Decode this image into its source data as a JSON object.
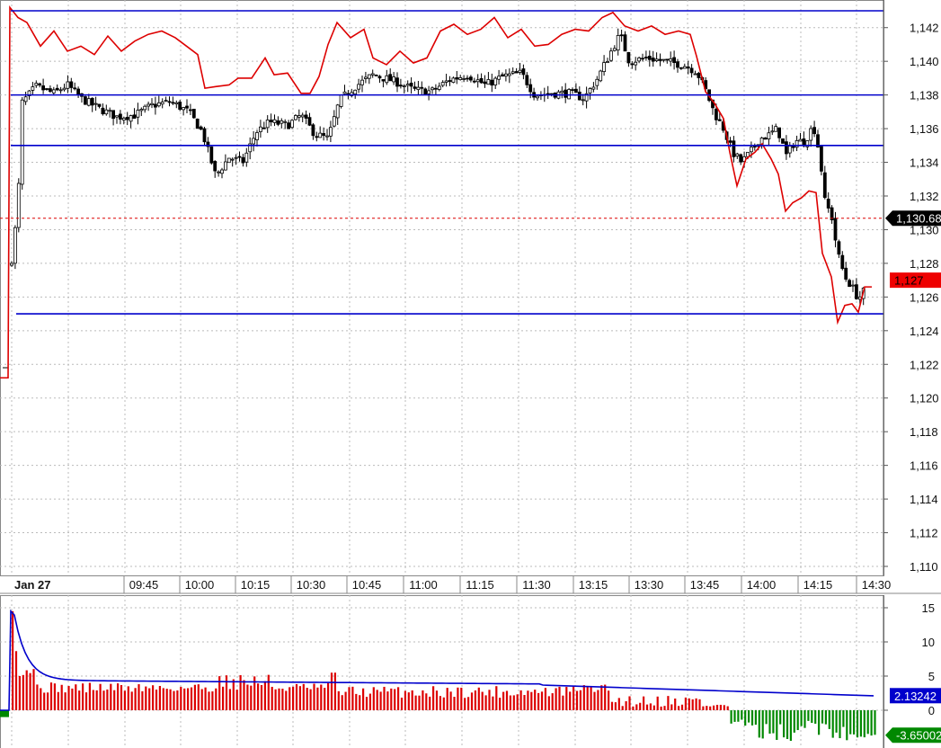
{
  "chart_data": [
    {
      "type": "candlestick",
      "title": "",
      "date_label": "Jan 27",
      "time_labels": [
        "09:45",
        "10:00",
        "10:15",
        "10:30",
        "10:45",
        "11:00",
        "11:15",
        "11:30",
        "13:15",
        "13:30",
        "13:45",
        "14:00",
        "14:15",
        "14:30"
      ],
      "y_ticks": [
        "1,142",
        "1,140",
        "1,138",
        "1,136",
        "1,134",
        "1,132",
        "1,130",
        "1,128",
        "1,126",
        "1,124",
        "1,122",
        "1,120",
        "1,118",
        "1,116",
        "1,114",
        "1,112",
        "1,110"
      ],
      "ylim": [
        1109,
        1143.5
      ],
      "grid": true,
      "horizontal_lines": [
        1143,
        1138,
        1135,
        1125
      ],
      "last_price_label": "1,130.68",
      "last_price": 1130.68,
      "red_line_label": "1,127",
      "red_line_last": 1127,
      "colors": {
        "candle_up": "#ffffff",
        "candle_down": "#000000",
        "red_line": "#dd0000",
        "hlines": "#0000cc",
        "price_badge_bg": "#000000",
        "red_badge_bg": "#ee0000"
      }
    },
    {
      "type": "bar",
      "y_ticks": [
        "15",
        "10",
        "5",
        "0"
      ],
      "ylim": [
        -4.5,
        16
      ],
      "blue_line_label": "2.13242",
      "blue_line_last": 2.13242,
      "hist_last_label": "-3.65002",
      "hist_last": -3.65002,
      "colors": {
        "positive": "#dd0000",
        "negative": "#008800",
        "line": "#0000cc",
        "blue_badge_bg": "#0000cc",
        "green_badge_bg": "#008800"
      }
    }
  ]
}
